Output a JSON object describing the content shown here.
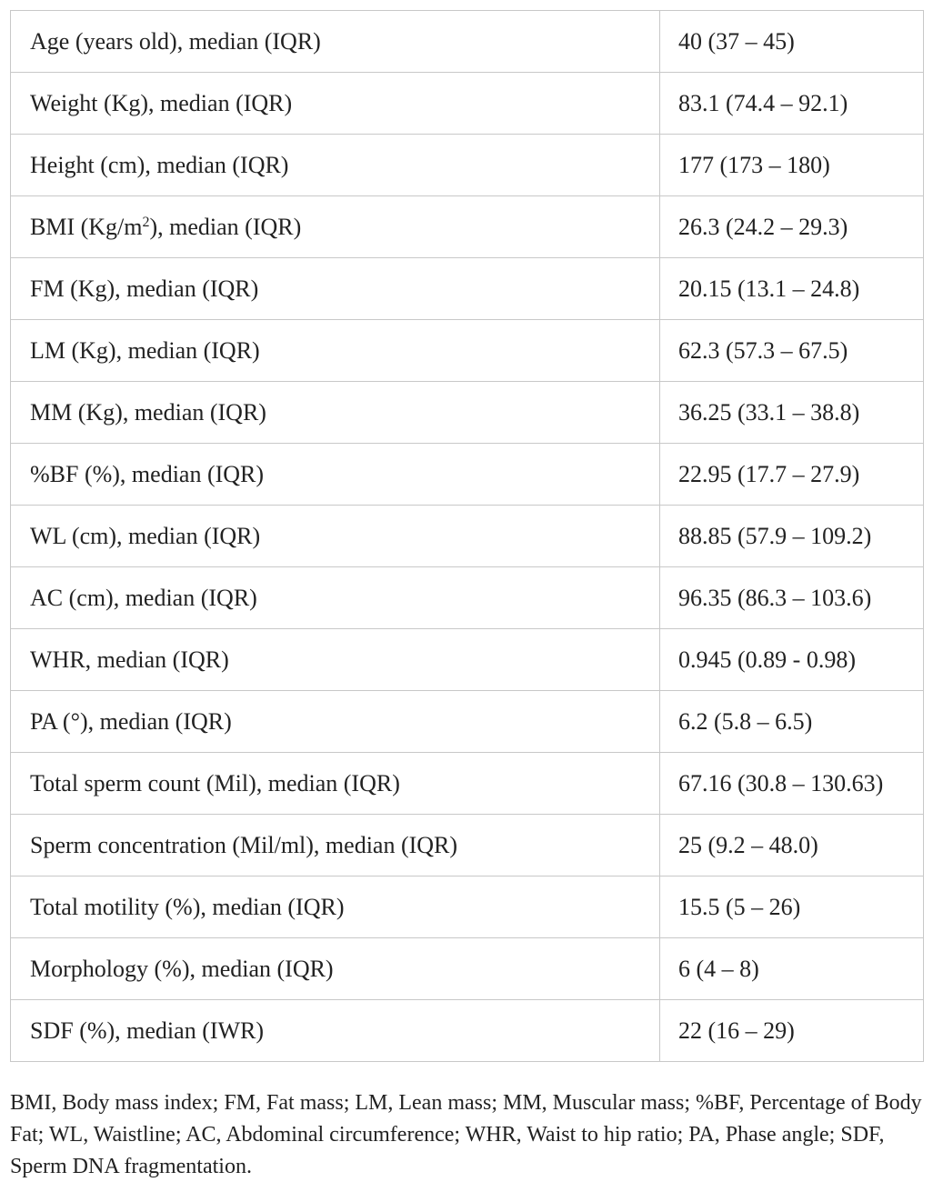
{
  "table": {
    "rows": [
      {
        "label": "Age (years old), median (IQR)",
        "value": "40 (37 – 45)"
      },
      {
        "label": "Weight (Kg), median (IQR)",
        "value": "83.1 (74.4 – 92.1)"
      },
      {
        "label": "Height (cm), median (IQR)",
        "value": "177 (173 – 180)"
      },
      {
        "label_pre": "BMI (Kg/m",
        "label_sup": "2",
        "label_post": "), median (IQR)",
        "value": "26.3 (24.2 – 29.3)"
      },
      {
        "label": "FM (Kg), median (IQR)",
        "value": "20.15 (13.1 – 24.8)"
      },
      {
        "label": "LM (Kg), median (IQR)",
        "value": "62.3 (57.3 – 67.5)"
      },
      {
        "label": "MM (Kg), median (IQR)",
        "value": "36.25 (33.1 – 38.8)"
      },
      {
        "label": "%BF (%), median (IQR)",
        "value": "22.95 (17.7 – 27.9)"
      },
      {
        "label": "WL (cm), median (IQR)",
        "value": "88.85 (57.9 – 109.2)"
      },
      {
        "label": "AC (cm), median (IQR)",
        "value": "96.35 (86.3 – 103.6)"
      },
      {
        "label": "WHR, median (IQR)",
        "value": "0.945 (0.89 - 0.98)"
      },
      {
        "label": "PA (°), median (IQR)",
        "value": "6.2 (5.8 – 6.5)"
      },
      {
        "label": "Total sperm count (Mil), median (IQR)",
        "value": "67.16 (30.8 – 130.63)"
      },
      {
        "label": "Sperm concentration (Mil/ml), median (IQR)",
        "value": "25 (9.2 – 48.0)"
      },
      {
        "label": "Total motility (%), median (IQR)",
        "value": "15.5 (5 – 26)"
      },
      {
        "label": "Morphology (%), median (IQR)",
        "value": "6 (4 – 8)"
      },
      {
        "label": "SDF (%), median (IWR)",
        "value": "22 (16 – 29)"
      }
    ]
  },
  "footnote": "BMI, Body mass index; FM, Fat mass; LM, Lean mass; MM, Muscular mass; %BF, Percentage of Body Fat; WL, Waistline; AC, Abdominal circumference; WHR, Waist to hip ratio; PA, Phase angle; SDF, Sperm DNA fragmentation."
}
